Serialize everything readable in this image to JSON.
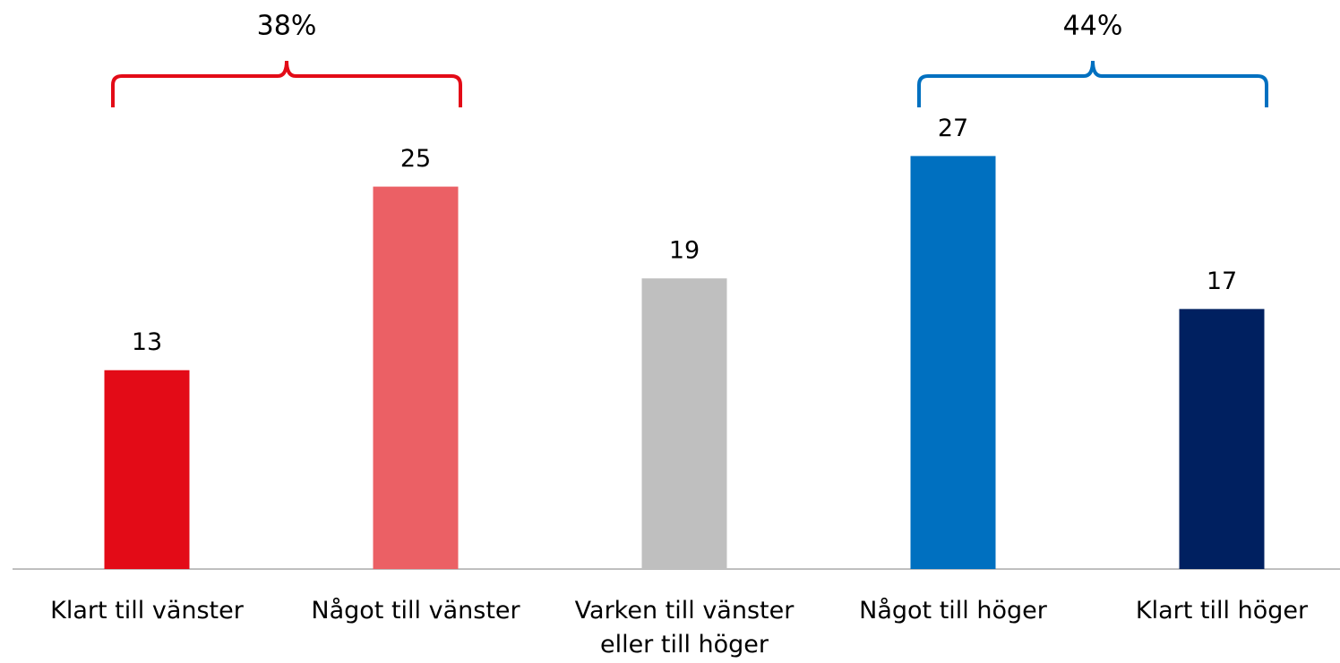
{
  "chart_data": {
    "type": "bar",
    "categories": [
      "Klart till vänster",
      "Något till vänster",
      "Varken till vänster eller till höger",
      "Något till höger",
      "Klart till höger"
    ],
    "values": [
      13,
      25,
      19,
      27,
      17
    ],
    "colors": [
      "#e30b17",
      "#eb6065",
      "#bfbfbf",
      "#0070c0",
      "#002060"
    ],
    "ylim": [
      0,
      37.2
    ],
    "annotations": [
      {
        "text": "38%",
        "categories": [
          "Klart till vänster",
          "Något till vänster"
        ],
        "color": "#e30b17"
      },
      {
        "text": "44%",
        "categories": [
          "Något till höger",
          "Klart till höger"
        ],
        "color": "#0070c0"
      }
    ]
  }
}
